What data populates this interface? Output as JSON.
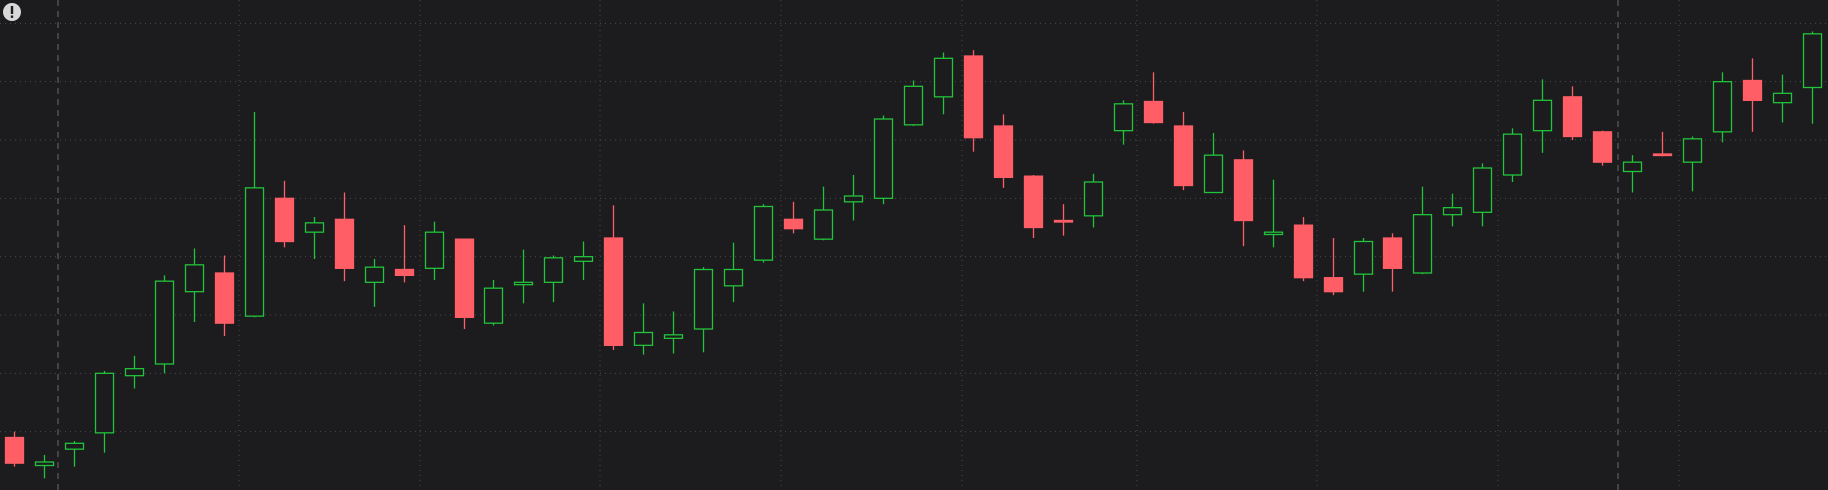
{
  "chart_data": {
    "type": "candlestick",
    "up_color": "#22c23a",
    "down_color": "#ff5e67",
    "ylim": [
      0,
      420
    ],
    "yticks": [
      50,
      100,
      150,
      200,
      250,
      300,
      350,
      400
    ],
    "grid": true,
    "series": [
      {
        "open": [
          45,
          21,
          35,
          49,
          98,
          108,
          170,
          186,
          149,
          250,
          221,
          232,
          178,
          189,
          190,
          215,
          143,
          176,
          178,
          196,
          216,
          124,
          130,
          138,
          175,
          197,
          232,
          215,
          247,
          250,
          313,
          337,
          372,
          312,
          269,
          231,
          235,
          308,
          333,
          312,
          255,
          283,
          219,
          227,
          182,
          185,
          216,
          186,
          236,
          238,
          270,
          308,
          337,
          307,
          273,
          288,
          281,
          307,
          351,
          332,
          345
        ],
        "high": [
          50,
          30,
          42,
          102,
          115,
          184,
          207,
          201,
          324,
          265,
          234,
          255,
          198,
          227,
          230,
          215,
          180,
          206,
          201,
          213,
          244,
          160,
          153,
          191,
          212,
          245,
          247,
          260,
          270,
          321,
          351,
          375,
          377,
          322,
          270,
          245,
          271,
          334,
          358,
          324,
          306,
          291,
          266,
          234,
          216,
          216,
          220,
          260,
          254,
          280,
          310,
          352,
          346,
          308,
          287,
          307,
          303,
          358,
          370,
          356,
          393
        ],
        "low": [
          20,
          10,
          20,
          32,
          87,
          100,
          144,
          132,
          148,
          208,
          198,
          179,
          157,
          178,
          180,
          138,
          141,
          160,
          161,
          180,
          120,
          116,
          117,
          118,
          161,
          195,
          220,
          214,
          231,
          245,
          312,
          322,
          290,
          259,
          216,
          218,
          225,
          296,
          314,
          257,
          255,
          209,
          208,
          179,
          167,
          170,
          170,
          185,
          226,
          226,
          264,
          289,
          300,
          278,
          255,
          286,
          256,
          298,
          307,
          315,
          314
        ],
        "close": [
          23,
          24,
          40,
          100,
          104,
          179,
          193,
          143,
          259,
          213,
          229,
          190,
          191,
          184,
          221,
          148,
          173,
          178,
          199,
          200,
          124,
          135,
          133,
          189,
          189,
          243,
          224,
          240,
          252,
          318,
          346,
          370,
          302,
          268,
          225,
          230,
          264,
          331,
          315,
          261,
          287,
          231,
          221,
          182,
          170,
          213,
          190,
          236,
          242,
          276,
          305,
          334,
          303,
          281,
          281,
          287,
          301,
          350,
          334,
          340,
          391
        ]
      }
    ]
  }
}
